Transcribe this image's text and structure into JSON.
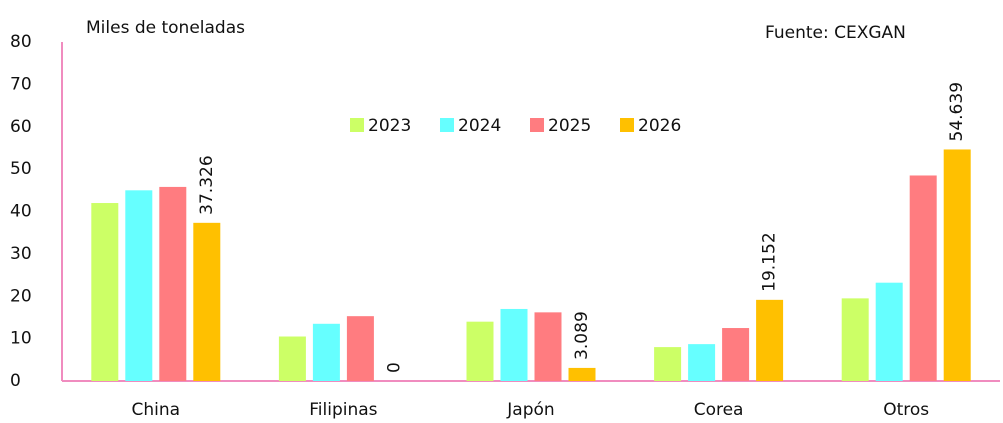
{
  "chart_data": {
    "type": "bar",
    "title": "Miles de toneladas",
    "source": "Fuente: CEXGAN",
    "categories": [
      "China",
      "Filipinas",
      "Japón",
      "Corea",
      "Otros"
    ],
    "series": [
      {
        "name": "2023",
        "color": "#ccff66",
        "values": [
          42,
          10.5,
          14,
          8,
          19.5
        ]
      },
      {
        "name": "2024",
        "color": "#66ffff",
        "values": [
          45,
          13.5,
          17,
          8.7,
          23.2
        ]
      },
      {
        "name": "2025",
        "color": "#ff7c80",
        "values": [
          45.8,
          15.3,
          16.2,
          12.5,
          48.5
        ]
      },
      {
        "name": "2026",
        "color": "#ffc000",
        "values": [
          37.326,
          0,
          3.089,
          19.152,
          54.639
        ],
        "value_labels": [
          "37.326",
          "0",
          "3.089",
          "19.152",
          "54.639"
        ]
      }
    ],
    "ylim": [
      0,
      80
    ],
    "yticks": [
      0,
      10,
      20,
      30,
      40,
      50,
      60,
      70,
      80
    ],
    "grid": false,
    "axis_color": "#f08cbf",
    "legend": "top"
  }
}
